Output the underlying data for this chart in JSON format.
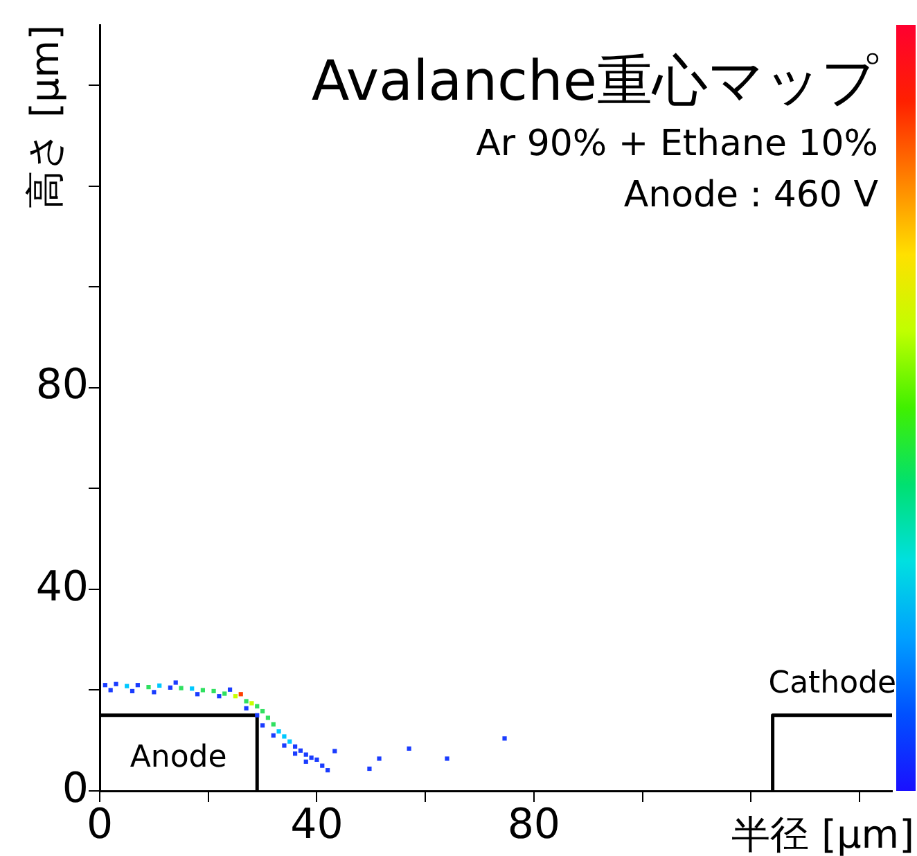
{
  "chart_data": {
    "type": "scatter",
    "title": "Avalanche重心マップ",
    "subtitle": "Ar 90% + Ethane 10%",
    "xlabel": "半径 [μm]",
    "ylabel": "高さ [μm]",
    "annotations": [
      "Anode : 460 V"
    ],
    "xlim": [
      0,
      146
    ],
    "xticks": [
      0,
      {
        "value": 20,
        "label": null
      },
      40,
      {
        "value": 60,
        "label": null
      },
      80,
      {
        "value": 100,
        "label": null
      },
      {
        "value": 120,
        "label": null
      },
      {
        "value": 140,
        "label": null
      }
    ],
    "ylim": [
      0,
      152
    ],
    "yticks": [
      0,
      {
        "value": 20,
        "label": null
      },
      40,
      {
        "value": 60,
        "label": null
      },
      80,
      {
        "value": 100,
        "label": null
      },
      {
        "value": 120,
        "label": null
      },
      {
        "value": 140,
        "label": null
      }
    ],
    "grid": false,
    "legend": false,
    "marker": "square",
    "series": [
      {
        "x": [
          1,
          3,
          5,
          7,
          9,
          11,
          13,
          15,
          17,
          19,
          21,
          23,
          25,
          26,
          27,
          28,
          29,
          30,
          31,
          32,
          33,
          34,
          35,
          36,
          37,
          38,
          39,
          2,
          6,
          10,
          14,
          18,
          22,
          24,
          27,
          29,
          30,
          32,
          34,
          36,
          38,
          40,
          41,
          42,
          43.3,
          49.7,
          51.5,
          57,
          64,
          74.6
        ],
        "values": [
          21,
          21.2,
          20.8,
          21,
          20.6,
          20.9,
          20.5,
          20.4,
          20.3,
          20,
          19.8,
          19.3,
          18.8,
          19.2,
          17.8,
          17.4,
          16.8,
          15.8,
          14.5,
          13.2,
          11.8,
          10.8,
          9.8,
          8.8,
          8,
          7.2,
          6.6,
          20,
          19.8,
          19.6,
          21.5,
          19.2,
          18.8,
          20.1,
          16.4,
          15,
          13,
          11,
          9,
          7.4,
          5.8,
          6.2,
          5,
          4.1,
          7.9,
          4.4,
          6.4,
          8.4,
          6.4,
          10.4
        ],
        "colors": [
          "#1a3cff",
          "#1a3cff",
          "#00c8ff",
          "#1a3cff",
          "#30e060",
          "#00c8ff",
          "#1a3cff",
          "#30e060",
          "#00c8ff",
          "#30e060",
          "#30e060",
          "#30e060",
          "#c8ff00",
          "#ff4000",
          "#30e060",
          "#c8ff00",
          "#30e060",
          "#30e060",
          "#30e060",
          "#30e060",
          "#00c8ff",
          "#00c8ff",
          "#00c8ff",
          "#1a3cff",
          "#1a3cff",
          "#1a3cff",
          "#1a3cff",
          "#1a3cff",
          "#1a3cff",
          "#1a3cff",
          "#1a3cff",
          "#1a3cff",
          "#1a3cff",
          "#1a3cff",
          "#1a3cff",
          "#1a3cff",
          "#1a3cff",
          "#1a3cff",
          "#1a3cff",
          "#1a3cff",
          "#1a3cff",
          "#1a3cff",
          "#1a3cff",
          "#1a3cff",
          "#1a3cff",
          "#1a3cff",
          "#1a3cff",
          "#1a3cff",
          "#1a3cff",
          "#1a3cff"
        ]
      },
      {
        "name": "Anode",
        "type": "line",
        "color": "#000000",
        "line_style": "solid",
        "marker": "none",
        "x": [
          0,
          29,
          29
        ],
        "values": [
          15,
          15,
          0
        ]
      },
      {
        "name": "Cathode",
        "type": "line",
        "color": "#000000",
        "line_style": "solid",
        "marker": "none",
        "x": [
          124,
          124,
          146
        ],
        "values": [
          0,
          15,
          15
        ]
      }
    ]
  }
}
